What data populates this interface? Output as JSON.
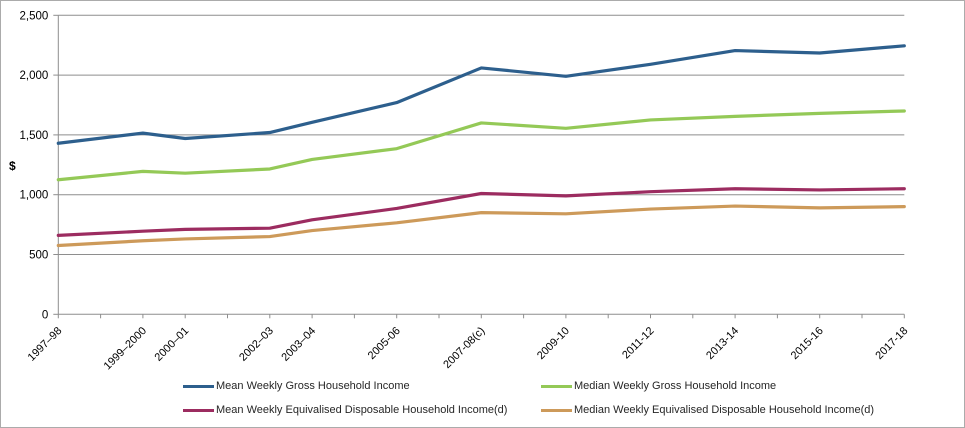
{
  "chart": {
    "y_axis_title": "$",
    "y_tick_labels": [
      "0",
      "500",
      "1,000",
      "1,500",
      "2,000",
      "2,500"
    ],
    "grid_color": "#8e8e8e",
    "text_color": "#262626",
    "frame_border_color": "#ababab"
  },
  "chart_data": {
    "type": "line",
    "title": "",
    "ylabel": "$",
    "ylim": [
      0,
      2500
    ],
    "y_tick_step": 500,
    "grid": "horizontal",
    "legend_position": "bottom",
    "x_categories": [
      "1997–98",
      "1999–2000",
      "2000–01",
      "2002–03",
      "2003–04",
      "2005-06",
      "2007-08(c)",
      "2009-10",
      "2011-12",
      "2013-14",
      "2015-16",
      "2017-18"
    ],
    "x_tick_slots": [
      0,
      2,
      3,
      5,
      6,
      8,
      10,
      12,
      14,
      16,
      18,
      20
    ],
    "x_total_slots": 21,
    "series": [
      {
        "name": "Mean Weekly Gross Household Income",
        "color": "#2d5f8d",
        "values": [
          1430,
          1515,
          1470,
          1520,
          1605,
          1770,
          2060,
          1990,
          2090,
          2205,
          2185,
          2245
        ]
      },
      {
        "name": "Median Weekly Gross Household Income",
        "color": "#94c957",
        "values": [
          1125,
          1195,
          1180,
          1215,
          1295,
          1385,
          1600,
          1555,
          1625,
          1655,
          1680,
          1700
        ]
      },
      {
        "name": "Mean Weekly Equivalised Disposable Household Income(d)",
        "color": "#9c2c60",
        "values": [
          660,
          695,
          710,
          720,
          790,
          885,
          1010,
          990,
          1025,
          1050,
          1040,
          1050
        ]
      },
      {
        "name": "Median Weekly Equivalised Disposable Household Income(d)",
        "color": "#cd9a5a",
        "values": [
          575,
          615,
          630,
          650,
          700,
          765,
          850,
          840,
          880,
          905,
          890,
          900
        ]
      }
    ]
  }
}
